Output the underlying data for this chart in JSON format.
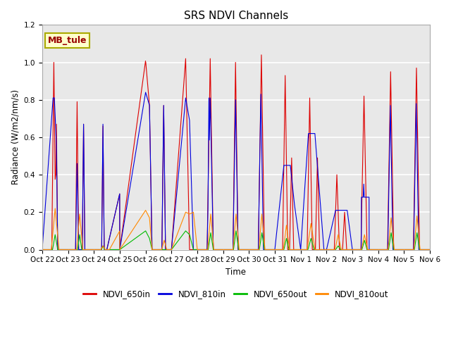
{
  "title": "SRS NDVI Channels",
  "xlabel": "Time",
  "ylabel": "Radiance (W/m2/nm/s)",
  "annotation": "MB_tule",
  "ylim": [
    0.0,
    1.2
  ],
  "plot_bg": "#e8e8e8",
  "fig_bg": "#ffffff",
  "grid_color": "white",
  "legend": [
    "NDVI_650in",
    "NDVI_810in",
    "NDVI_650out",
    "NDVI_810out"
  ],
  "colors": [
    "#dd0000",
    "#0000dd",
    "#00bb00",
    "#ff8800"
  ],
  "tick_labels": [
    "Oct 22",
    "Oct 23",
    "Oct 24",
    "Oct 25",
    "Oct 26",
    "Oct 27",
    "Oct 28",
    "Oct 29",
    "Oct 30",
    "Oct 31",
    "Nov 1",
    "Nov 2",
    "Nov 3",
    "Nov 4",
    "Nov 5",
    "Nov 6"
  ],
  "figsize": [
    6.4,
    4.8
  ],
  "dpi": 100
}
